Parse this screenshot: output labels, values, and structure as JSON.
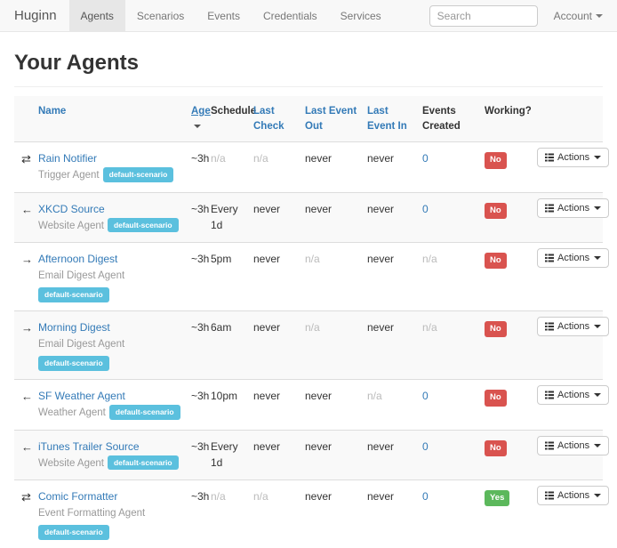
{
  "navbar": {
    "brand": "Huginn",
    "items": [
      {
        "label": "Agents",
        "active": true
      },
      {
        "label": "Scenarios",
        "active": false
      },
      {
        "label": "Events",
        "active": false
      },
      {
        "label": "Credentials",
        "active": false
      },
      {
        "label": "Services",
        "active": false
      }
    ],
    "search": {
      "placeholder": "Search"
    },
    "account": {
      "label": "Account"
    }
  },
  "page": {
    "title": "Your Agents"
  },
  "table": {
    "columns": [
      {
        "label": "Name",
        "style": "link",
        "sorted": false
      },
      {
        "label": "Age",
        "style": "link",
        "sorted": true
      },
      {
        "label": "Schedule",
        "style": "plain",
        "sorted": false
      },
      {
        "label": "Last Check",
        "style": "link",
        "sorted": false
      },
      {
        "label": "Last Event Out",
        "style": "link",
        "sorted": false
      },
      {
        "label": "Last Event In",
        "style": "link",
        "sorted": false
      },
      {
        "label": "Events Created",
        "style": "plain",
        "sorted": false
      },
      {
        "label": "Working?",
        "style": "plain",
        "sorted": false
      }
    ],
    "actions_label": "Actions",
    "rows": [
      {
        "icon": "transfer-icon",
        "name": "Rain Notifier",
        "type": "Trigger Agent",
        "scenario": "default-scenario",
        "badge_inline": true,
        "age": "~3h",
        "schedule": "n/a",
        "last_check": "n/a",
        "last_event_out": "never",
        "last_event_in": "never",
        "events_created": "0",
        "working": "No"
      },
      {
        "icon": "arrow-left-icon",
        "name": "XKCD Source",
        "type": "Website Agent",
        "scenario": "default-scenario",
        "badge_inline": true,
        "age": "~3h",
        "schedule": "Every 1d",
        "last_check": "never",
        "last_event_out": "never",
        "last_event_in": "never",
        "events_created": "0",
        "working": "No"
      },
      {
        "icon": "arrow-right-icon",
        "name": "Afternoon Digest",
        "type": "Email Digest Agent",
        "scenario": "default-scenario",
        "badge_inline": false,
        "age": "~3h",
        "schedule": "5pm",
        "last_check": "never",
        "last_event_out": "n/a",
        "last_event_in": "never",
        "events_created": "n/a",
        "working": "No"
      },
      {
        "icon": "arrow-right-icon",
        "name": "Morning Digest",
        "type": "Email Digest Agent",
        "scenario": "default-scenario",
        "badge_inline": false,
        "age": "~3h",
        "schedule": "6am",
        "last_check": "never",
        "last_event_out": "n/a",
        "last_event_in": "never",
        "events_created": "n/a",
        "working": "No"
      },
      {
        "icon": "arrow-left-icon",
        "name": "SF Weather Agent",
        "type": "Weather Agent",
        "scenario": "default-scenario",
        "badge_inline": true,
        "age": "~3h",
        "schedule": "10pm",
        "last_check": "never",
        "last_event_out": "never",
        "last_event_in": "n/a",
        "events_created": "0",
        "working": "No"
      },
      {
        "icon": "arrow-left-icon",
        "name": "iTunes Trailer Source",
        "type": "Website Agent",
        "scenario": "default-scenario",
        "badge_inline": true,
        "age": "~3h",
        "schedule": "Every 1d",
        "last_check": "never",
        "last_event_out": "never",
        "last_event_in": "never",
        "events_created": "0",
        "working": "No"
      },
      {
        "icon": "transfer-icon",
        "name": "Comic Formatter",
        "type": "Event Formatting Agent",
        "scenario": "default-scenario",
        "badge_inline": false,
        "age": "~3h",
        "schedule": "n/a",
        "last_check": "n/a",
        "last_event_out": "never",
        "last_event_in": "never",
        "events_created": "0",
        "working": "Yes"
      }
    ]
  },
  "colors": {
    "link_blue": "#337ab7",
    "scenario_badge": "#5bc0de",
    "working_no": "#d9534f",
    "working_yes": "#5cb85c",
    "navbar_bg": "#f8f8f8",
    "stripe": "#f9f9f9"
  }
}
